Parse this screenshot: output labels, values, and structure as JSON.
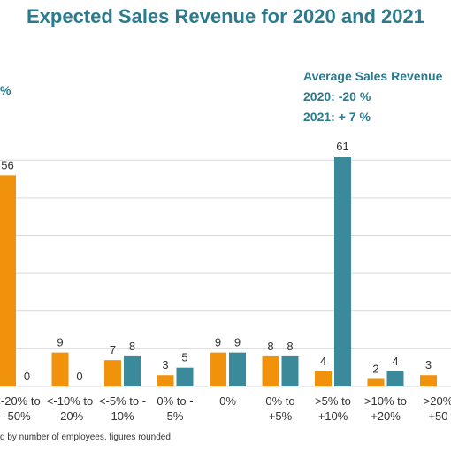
{
  "chart_data": {
    "type": "bar",
    "title": "Expected Sales Revenue for 2020 and 2021",
    "categories": [
      [
        "<-20% to",
        "-50%"
      ],
      [
        "<-10% to",
        "-20%"
      ],
      [
        "<-5% to -",
        "10%"
      ],
      [
        "0% to -",
        "5%"
      ],
      [
        "0%"
      ],
      [
        "0% to",
        "+5%"
      ],
      [
        ">5% to",
        "+10%"
      ],
      [
        ">10% to",
        "+20%"
      ],
      [
        ">20%",
        "+50"
      ]
    ],
    "series": [
      {
        "name": "2020",
        "color": "#f0920c",
        "values": [
          56,
          9,
          7,
          3,
          9,
          8,
          4,
          2,
          3
        ]
      },
      {
        "name": "2021",
        "color": "#3a8a9c",
        "values": [
          0,
          0,
          8,
          5,
          9,
          8,
          61,
          4,
          null
        ]
      }
    ],
    "ylim": [
      0,
      65
    ],
    "grid": true,
    "annotation": {
      "heading": "Average Sales Revenue",
      "line2020": "2020: -20 %",
      "line2021": "2021: + 7 %"
    },
    "left_fragment": "%",
    "footnote": "d by number of employees, figures rounded"
  }
}
